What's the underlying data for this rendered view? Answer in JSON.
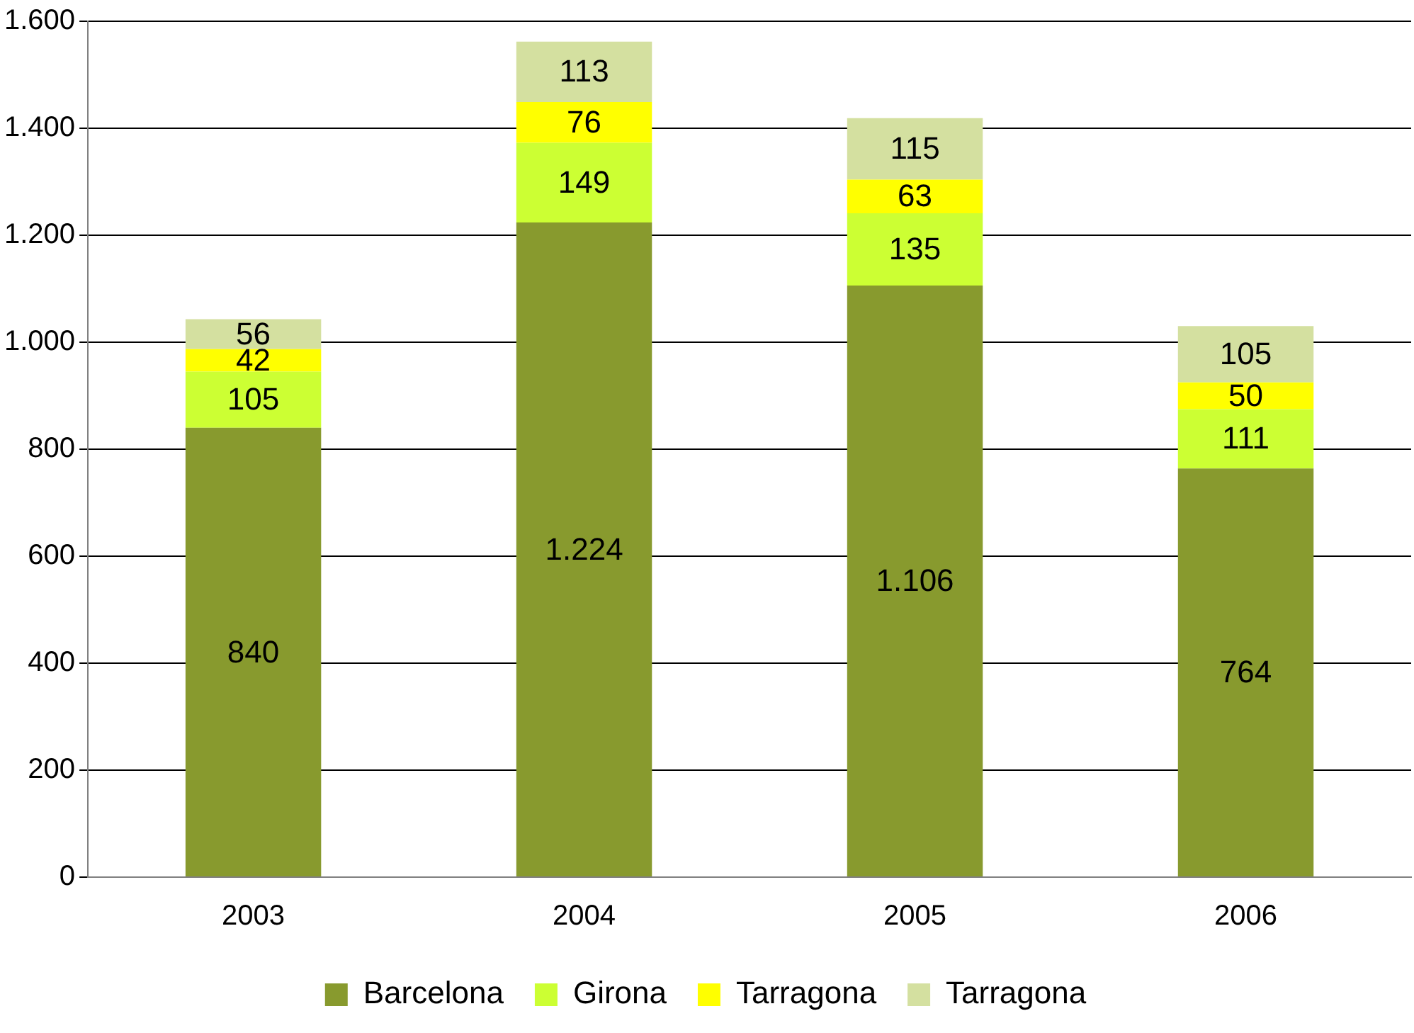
{
  "chart_data": {
    "type": "bar",
    "stacked": true,
    "categories": [
      "2003",
      "2004",
      "2005",
      "2006"
    ],
    "series": [
      {
        "name": "Barcelona",
        "color": "#889a2e",
        "values": [
          840,
          1224,
          1106,
          764
        ],
        "value_labels": [
          "840",
          "1.224",
          "1.106",
          "764"
        ]
      },
      {
        "name": "Girona",
        "color": "#ccff33",
        "values": [
          105,
          149,
          135,
          111
        ],
        "value_labels": [
          "105",
          "149",
          "135",
          "111"
        ]
      },
      {
        "name": "Tarragona",
        "color": "#ffff00",
        "values": [
          42,
          76,
          63,
          50
        ],
        "value_labels": [
          "42",
          "76",
          "63",
          "50"
        ]
      },
      {
        "name": "Tarragona",
        "color": "#d4e0a0",
        "values": [
          56,
          113,
          115,
          105
        ],
        "value_labels": [
          "56",
          "113",
          "115",
          "105"
        ]
      }
    ],
    "ylim": [
      0,
      1600
    ],
    "yticks": [
      0,
      200,
      400,
      600,
      800,
      {
        "value": 1000,
        "label": "1.000"
      },
      {
        "value": 1200,
        "label": "1.200"
      },
      {
        "value": 1400,
        "label": "1.400"
      },
      {
        "value": 1600,
        "label": "1.600"
      }
    ],
    "grid": "y",
    "legend": "bottom"
  }
}
